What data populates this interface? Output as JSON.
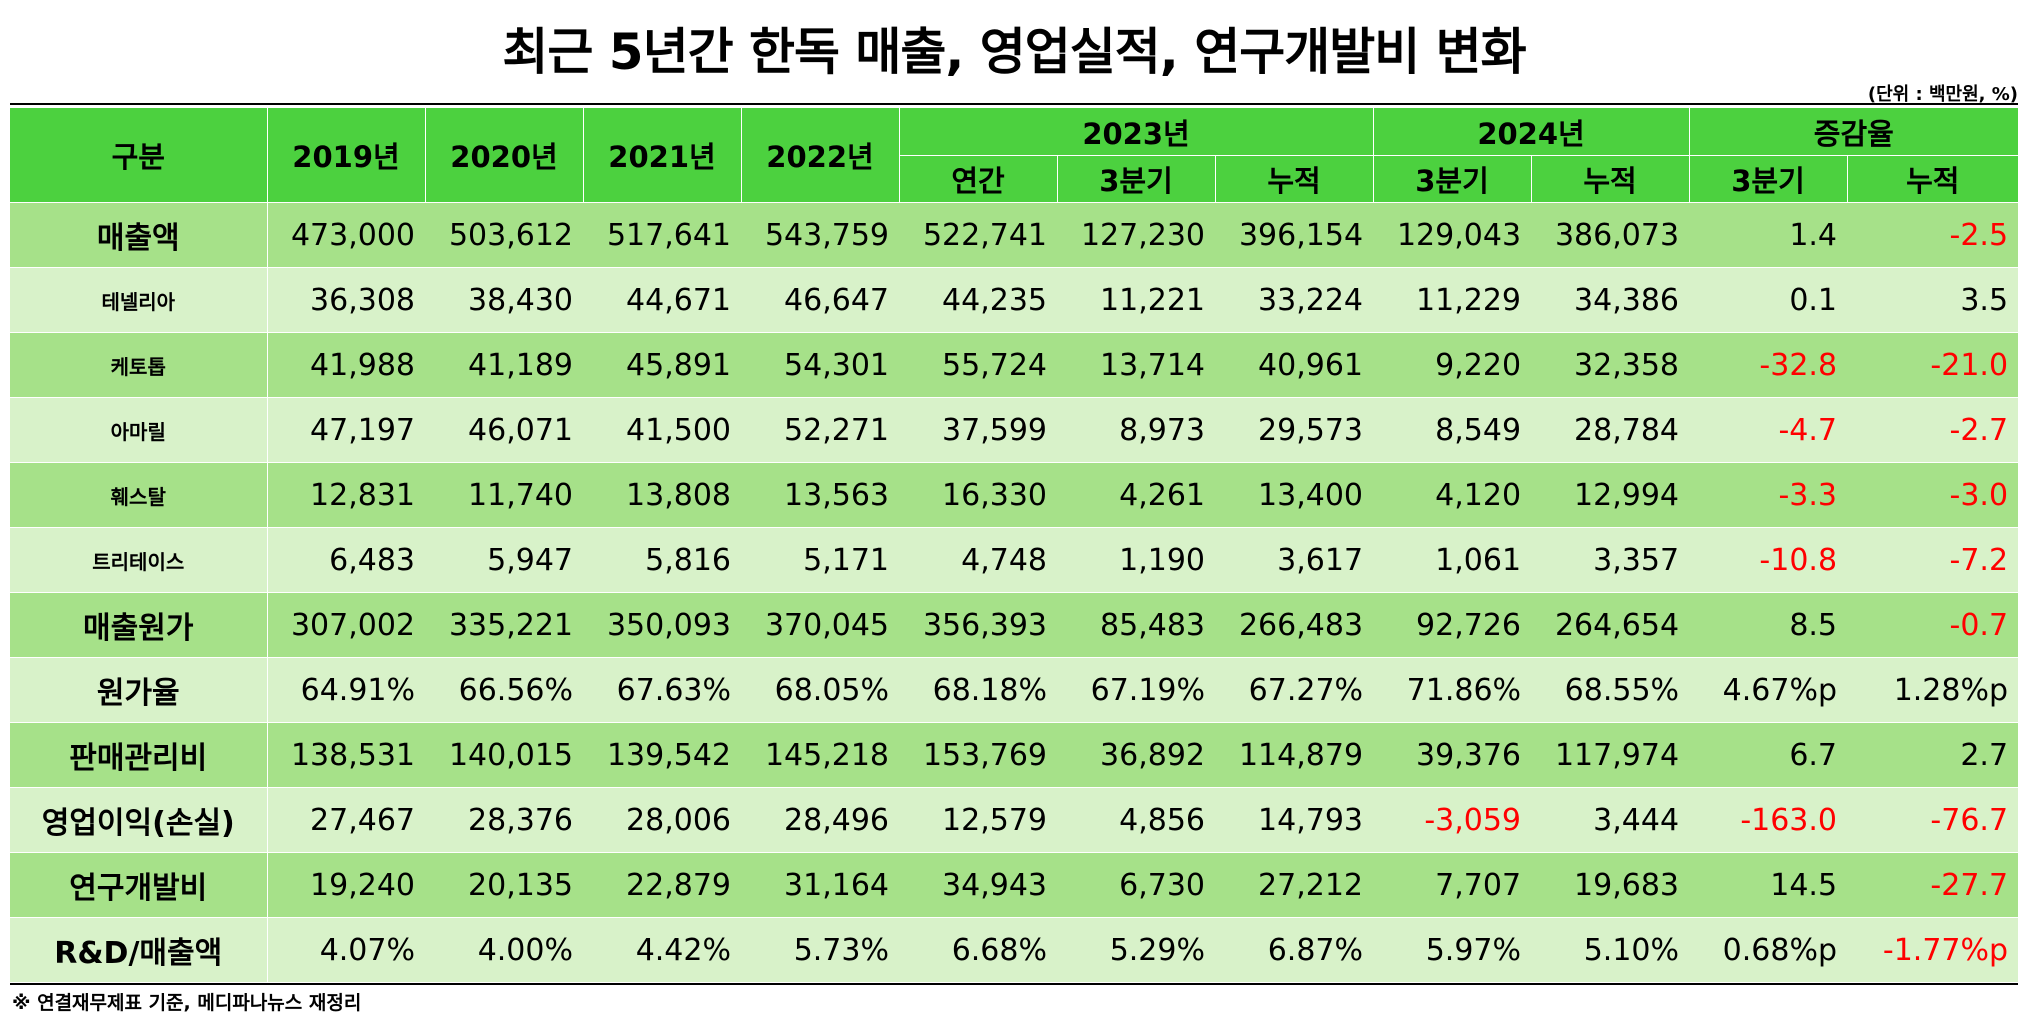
{
  "title": "최근 5년간 한독 매출, 영업실적, 연구개발비 변화",
  "unit_note": "(단위 : 백만원, %)",
  "header": {
    "category": "구분",
    "years": [
      "2019년",
      "2020년",
      "2021년",
      "2022년"
    ],
    "year_2023": "2023년",
    "year_2024": "2024년",
    "change_rate": "증감율",
    "sub_2023": [
      "연간",
      "3분기",
      "누적"
    ],
    "sub_2024": [
      "3분기",
      "누적"
    ],
    "sub_change": [
      "3분기",
      "누적"
    ]
  },
  "rows": [
    {
      "label": "매출액",
      "kind": "major",
      "values": [
        "473,000",
        "503,612",
        "517,641",
        "543,759",
        "522,741",
        "127,230",
        "396,154",
        "129,043",
        "386,073",
        "1.4",
        "-2.5"
      ]
    },
    {
      "label": "테넬리아",
      "kind": "minor",
      "values": [
        "36,308",
        "38,430",
        "44,671",
        "46,647",
        "44,235",
        "11,221",
        "33,224",
        "11,229",
        "34,386",
        "0.1",
        "3.5"
      ]
    },
    {
      "label": "케토톱",
      "kind": "minor",
      "values": [
        "41,988",
        "41,189",
        "45,891",
        "54,301",
        "55,724",
        "13,714",
        "40,961",
        "9,220",
        "32,358",
        "-32.8",
        "-21.0"
      ]
    },
    {
      "label": "아마릴",
      "kind": "minor",
      "values": [
        "47,197",
        "46,071",
        "41,500",
        "52,271",
        "37,599",
        "8,973",
        "29,573",
        "8,549",
        "28,784",
        "-4.7",
        "-2.7"
      ]
    },
    {
      "label": "훼스탈",
      "kind": "minor",
      "values": [
        "12,831",
        "11,740",
        "13,808",
        "13,563",
        "16,330",
        "4,261",
        "13,400",
        "4,120",
        "12,994",
        "-3.3",
        "-3.0"
      ]
    },
    {
      "label": "트리테이스",
      "kind": "minor",
      "values": [
        "6,483",
        "5,947",
        "5,816",
        "5,171",
        "4,748",
        "1,190",
        "3,617",
        "1,061",
        "3,357",
        "-10.8",
        "-7.2"
      ]
    },
    {
      "label": "매출원가",
      "kind": "major",
      "values": [
        "307,002",
        "335,221",
        "350,093",
        "370,045",
        "356,393",
        "85,483",
        "266,483",
        "92,726",
        "264,654",
        "8.5",
        "-0.7"
      ]
    },
    {
      "label": "원가율",
      "kind": "major",
      "values": [
        "64.91%",
        "66.56%",
        "67.63%",
        "68.05%",
        "68.18%",
        "67.19%",
        "67.27%",
        "71.86%",
        "68.55%",
        "4.67%p",
        "1.28%p"
      ]
    },
    {
      "label": "판매관리비",
      "kind": "major",
      "values": [
        "138,531",
        "140,015",
        "139,542",
        "145,218",
        "153,769",
        "36,892",
        "114,879",
        "39,376",
        "117,974",
        "6.7",
        "2.7"
      ]
    },
    {
      "label": "영업이익(손실)",
      "kind": "major",
      "values": [
        "27,467",
        "28,376",
        "28,006",
        "28,496",
        "12,579",
        "4,856",
        "14,793",
        "-3,059",
        "3,444",
        "-163.0",
        "-76.7"
      ]
    },
    {
      "label": "연구개발비",
      "kind": "major",
      "values": [
        "19,240",
        "20,135",
        "22,879",
        "31,164",
        "34,943",
        "6,730",
        "27,212",
        "7,707",
        "19,683",
        "14.5",
        "-27.7"
      ]
    },
    {
      "label": "R&D/매출액",
      "kind": "major",
      "values": [
        "4.07%",
        "4.00%",
        "4.42%",
        "5.73%",
        "6.68%",
        "5.29%",
        "6.87%",
        "5.97%",
        "5.10%",
        "0.68%p",
        "-1.77%p"
      ]
    }
  ],
  "footnote": "※ 연결재무제표 기준, 메디파나뉴스 재정리",
  "colors": {
    "header": "#4cd13f",
    "row_dark": "#a6e189",
    "row_light": "#d8f2c9",
    "negative": "#ff0000"
  }
}
